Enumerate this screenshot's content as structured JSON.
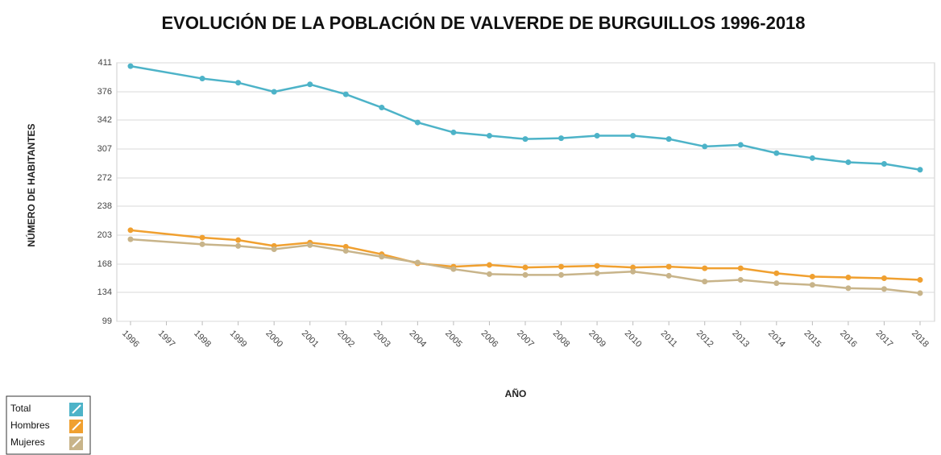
{
  "chart_data": {
    "type": "line",
    "title": "EVOLUCIÓN DE LA POBLACIÓN DE VALVERDE DE BURGUILLOS 1996-2018",
    "x_label": "AÑO",
    "y_label": "NÚMERO DE HABITANTES",
    "x": [
      1996,
      1998,
      1999,
      2000,
      2001,
      2002,
      2003,
      2004,
      2005,
      2006,
      2007,
      2008,
      2009,
      2010,
      2011,
      2012,
      2013,
      2014,
      2015,
      2016,
      2017,
      2018
    ],
    "xlim": [
      1996,
      2018
    ],
    "xticks": [
      1996,
      1997,
      1998,
      1999,
      2000,
      2001,
      2002,
      2003,
      2004,
      2005,
      2006,
      2007,
      2008,
      2009,
      2010,
      2011,
      2012,
      2013,
      2014,
      2015,
      2016,
      2017,
      2018
    ],
    "ylim": [
      99,
      411
    ],
    "yticks": [
      99,
      134,
      168,
      203,
      238,
      272,
      307,
      342,
      376,
      411
    ],
    "grid": true,
    "legend": "bottom-left",
    "series": [
      {
        "name": "Total",
        "color": "#4db3c8",
        "values": [
          407,
          392,
          387,
          376,
          385,
          373,
          357,
          339,
          327,
          323,
          319,
          320,
          323,
          323,
          319,
          310,
          312,
          302,
          296,
          291,
          289,
          282
        ]
      },
      {
        "name": "Hombres",
        "color": "#f0a030",
        "values": [
          209,
          200,
          197,
          190,
          194,
          189,
          180,
          169,
          165,
          167,
          164,
          165,
          166,
          164,
          165,
          163,
          163,
          157,
          153,
          152,
          151,
          149
        ]
      },
      {
        "name": "Mujeres",
        "color": "#c8b48a",
        "values": [
          198,
          192,
          190,
          186,
          191,
          184,
          177,
          170,
          162,
          156,
          155,
          155,
          157,
          159,
          154,
          147,
          149,
          145,
          143,
          139,
          138,
          133
        ]
      }
    ]
  }
}
